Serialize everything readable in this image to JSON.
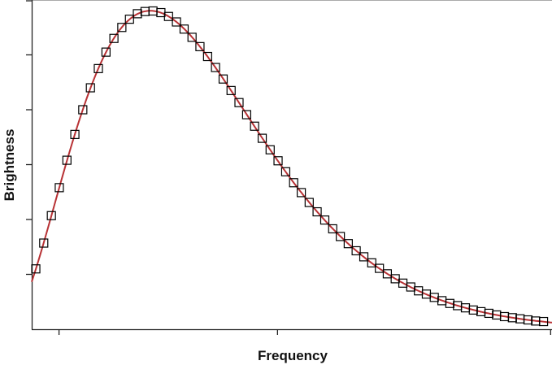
{
  "chart_data": {
    "type": "scatter",
    "title": "",
    "xlabel": "Frequency",
    "ylabel": "Brightness",
    "xlim": [
      1,
      20.05
    ],
    "ylim": [
      0,
      6
    ],
    "x_ticks": [
      2,
      10,
      20
    ],
    "y_ticks": [
      1,
      2,
      3,
      4,
      5,
      6
    ],
    "tick_labels_shown": false,
    "grid": false,
    "legend": "none",
    "colors": {
      "points": "#000000",
      "curve": "#b83235",
      "frame": "#aaaaaa"
    },
    "series": [
      {
        "type": "scatter",
        "marker": "open-square",
        "x": [
          1.15,
          1.44,
          1.72,
          2.01,
          2.29,
          2.58,
          2.87,
          3.15,
          3.44,
          3.72,
          4.01,
          4.3,
          4.58,
          4.87,
          5.15,
          5.44,
          5.73,
          6.01,
          6.3,
          6.58,
          6.87,
          7.16,
          7.44,
          7.73,
          8.01,
          8.3,
          8.59,
          8.87,
          9.16,
          9.44,
          9.73,
          10.02,
          10.3,
          10.59,
          10.87,
          11.16,
          11.45,
          11.73,
          12.02,
          12.3,
          12.59,
          12.88,
          13.16,
          13.45,
          13.73,
          14.02,
          14.31,
          14.59,
          14.88,
          15.16,
          15.45,
          15.74,
          16.02,
          16.31,
          16.59,
          16.88,
          17.17,
          17.45,
          17.74,
          18.02,
          18.31,
          18.6,
          18.88,
          19.17,
          19.45,
          19.74
        ],
        "y": [
          1.1,
          1.57,
          2.07,
          2.58,
          3.08,
          3.55,
          4.0,
          4.4,
          4.75,
          5.05,
          5.3,
          5.5,
          5.65,
          5.75,
          5.79,
          5.8,
          5.77,
          5.7,
          5.6,
          5.47,
          5.32,
          5.15,
          4.97,
          4.77,
          4.56,
          4.35,
          4.13,
          3.91,
          3.7,
          3.48,
          3.27,
          3.07,
          2.87,
          2.67,
          2.49,
          2.31,
          2.14,
          1.99,
          1.83,
          1.69,
          1.56,
          1.43,
          1.32,
          1.21,
          1.11,
          1.01,
          0.92,
          0.84,
          0.77,
          0.7,
          0.64,
          0.58,
          0.52,
          0.47,
          0.43,
          0.39,
          0.35,
          0.32,
          0.29,
          0.26,
          0.23,
          0.21,
          0.19,
          0.17,
          0.15,
          0.14
        ]
      },
      {
        "type": "line",
        "model": "blackbody fit"
      }
    ]
  }
}
